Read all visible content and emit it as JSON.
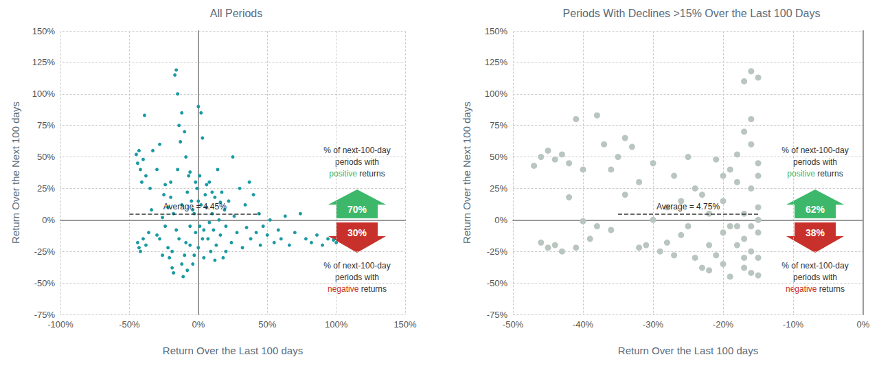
{
  "chart_data": [
    {
      "type": "scatter",
      "title": "All Periods",
      "x_label": "Return Over the Last 100 days",
      "y_label": "Return Over the Next 100 days",
      "xlim": [
        -100,
        150
      ],
      "xticks": [
        {
          "value": -100,
          "label": "-100%"
        },
        {
          "value": -50,
          "label": "-50%"
        },
        {
          "value": 0,
          "label": "0%"
        },
        {
          "value": 50,
          "label": "50%"
        },
        {
          "value": 100,
          "label": "100%"
        },
        {
          "value": 150,
          "label": "150%"
        }
      ],
      "ylim": [
        -75,
        150
      ],
      "yticks": [
        {
          "value": -75,
          "label": "-75%"
        },
        {
          "value": -50,
          "label": "-50%"
        },
        {
          "value": -25,
          "label": "-25%"
        },
        {
          "value": 0,
          "label": "0%"
        },
        {
          "value": 25,
          "label": "25%"
        },
        {
          "value": 50,
          "label": "50%"
        },
        {
          "value": 75,
          "label": "75%"
        },
        {
          "value": 100,
          "label": "100%"
        },
        {
          "value": 125,
          "label": "125%"
        },
        {
          "value": 150,
          "label": "150%"
        }
      ],
      "grid": true,
      "color": "#1a9aa3",
      "marker": "circle",
      "x": [
        -45,
        -44,
        -43,
        -42,
        -41,
        -40,
        -39,
        -38,
        -44,
        -43,
        -42,
        -40,
        -38,
        -36,
        -35,
        -33,
        -30,
        -28,
        -26,
        -25,
        -24,
        -22,
        -21,
        -20,
        -19,
        -18,
        -17,
        -16,
        -15,
        -14,
        -13,
        -12,
        -11,
        -10,
        -9,
        -8,
        -7,
        -6,
        -5,
        -4,
        -3,
        -2,
        -1,
        0,
        1,
        2,
        3,
        4,
        5,
        6,
        7,
        8,
        9,
        10,
        11,
        12,
        13,
        14,
        15,
        16,
        17,
        18,
        19,
        20,
        22,
        24,
        25,
        26,
        28,
        30,
        32,
        34,
        35,
        37,
        38,
        40,
        42,
        44,
        45,
        47,
        50,
        52,
        55,
        58,
        60,
        63,
        66,
        70,
        74,
        78,
        82,
        86,
        90,
        94,
        98,
        100,
        -28,
        -22,
        -18,
        -14,
        -12,
        -10,
        -8,
        -6,
        -4,
        -2,
        0,
        2,
        4,
        6,
        -16,
        -20,
        -24,
        -30,
        -34,
        -12,
        -6,
        0,
        3,
        8,
        -9,
        -3,
        1,
        10,
        12,
        -15,
        -19,
        -26,
        20,
        16
      ],
      "values": [
        52,
        45,
        55,
        40,
        30,
        48,
        83,
        35,
        -18,
        -22,
        -25,
        -15,
        -20,
        -10,
        25,
        55,
        40,
        60,
        -28,
        20,
        -5,
        10,
        -30,
        30,
        -38,
        -42,
        115,
        119,
        100,
        75,
        62,
        85,
        -45,
        70,
        50,
        -40,
        35,
        -20,
        15,
        -35,
        5,
        -10,
        25,
        90,
        -5,
        85,
        65,
        -30,
        20,
        10,
        -15,
        30,
        -25,
        5,
        -8,
        18,
        -20,
        40,
        0,
        -12,
        22,
        -30,
        8,
        -5,
        15,
        -18,
        50,
        3,
        -10,
        25,
        -22,
        12,
        -6,
        30,
        -15,
        20,
        -10,
        5,
        -20,
        -5,
        -12,
        0,
        -18,
        -8,
        -15,
        3,
        -20,
        -10,
        5,
        -15,
        -18,
        -12,
        -20,
        -15,
        -16,
        -18,
        -15,
        -22,
        5,
        -15,
        12,
        -28,
        22,
        -5,
        8,
        30,
        -22,
        12,
        -8,
        28,
        -8,
        18,
        28,
        -12,
        8,
        -35,
        38,
        15,
        -15,
        -2,
        -18,
        -28,
        35,
        22,
        -32,
        40,
        -25,
        2,
        -25,
        14
      ],
      "average": {
        "value": 4.45,
        "label": "Average = 4.45%",
        "x": [
          -50,
          45
        ],
        "line_style": "dashed"
      },
      "positive": {
        "caption": [
          "% of next-100-day",
          "periods with",
          "positive",
          "returns"
        ],
        "label": "70%",
        "color": "#3db86b"
      },
      "negative": {
        "caption": [
          "% of next-100-day",
          "periods with",
          "negative",
          "returns"
        ],
        "label": "30%",
        "color": "#c8312b"
      }
    },
    {
      "type": "scatter",
      "title": "Periods With Declines >15% Over the Last 100 Days",
      "x_label": "Return Over the Last 100 days",
      "y_label": "Return Over the Next 100 days",
      "xlim": [
        -50,
        0
      ],
      "xticks": [
        {
          "value": -50,
          "label": "-50%"
        },
        {
          "value": -40,
          "label": "-40%"
        },
        {
          "value": -30,
          "label": "-30%"
        },
        {
          "value": -20,
          "label": "-20%"
        },
        {
          "value": -10,
          "label": "-10%"
        },
        {
          "value": 0,
          "label": "0%"
        }
      ],
      "ylim": [
        -75,
        150
      ],
      "yticks": [
        {
          "value": -75,
          "label": "-75%"
        },
        {
          "value": -50,
          "label": "-50%"
        },
        {
          "value": -25,
          "label": "-25%"
        },
        {
          "value": 0,
          "label": "0%"
        },
        {
          "value": 25,
          "label": "25%"
        },
        {
          "value": 50,
          "label": "50%"
        },
        {
          "value": 75,
          "label": "75%"
        },
        {
          "value": 100,
          "label": "100%"
        },
        {
          "value": 125,
          "label": "125%"
        },
        {
          "value": 150,
          "label": "150%"
        }
      ],
      "grid": true,
      "color": "#b9c6bf",
      "marker": "circle",
      "x": [
        -47,
        -46,
        -45,
        -44,
        -43,
        -42,
        -41,
        -40,
        -38,
        -37,
        -46,
        -45,
        -44,
        -43,
        -41,
        -39,
        -36,
        -35,
        -34,
        -33,
        -32,
        -31,
        -30,
        -29,
        -28,
        -27,
        -26,
        -25,
        -24,
        -23,
        -22,
        -21,
        -20,
        -20,
        -19,
        -19,
        -18,
        -18,
        -17,
        -17,
        -16,
        -16,
        -16,
        -16,
        -15,
        -15,
        -15,
        -15,
        -15,
        -15,
        -17,
        -17,
        -18,
        -16,
        -15,
        -16,
        -17,
        -20,
        -22,
        -24,
        -26,
        -28,
        -30,
        -32,
        -34,
        -36,
        -38,
        -40,
        -42,
        -23,
        -21,
        -19,
        -18,
        -17,
        -16,
        -15,
        -20,
        -22,
        -25,
        -27
      ],
      "values": [
        43,
        50,
        55,
        48,
        52,
        45,
        80,
        40,
        83,
        60,
        -18,
        -22,
        -20,
        -25,
        -22,
        -15,
        -8,
        50,
        65,
        58,
        30,
        -20,
        45,
        -25,
        10,
        35,
        -12,
        50,
        -30,
        20,
        -40,
        48,
        -35,
        15,
        -45,
        40,
        -20,
        30,
        110,
        -38,
        118,
        80,
        -42,
        25,
        113,
        45,
        -10,
        10,
        -30,
        35,
        5,
        -15,
        -5,
        -25,
        -44,
        60,
        70,
        -10,
        5,
        25,
        15,
        -18,
        0,
        -22,
        20,
        40,
        -5,
        -1,
        18,
        -38,
        -28,
        -5,
        52,
        -30,
        -5,
        0,
        35,
        -20,
        -5,
        -28
      ],
      "average": {
        "value": 4.75,
        "label": "Average = 4.75%",
        "x": [
          -35,
          -15
        ],
        "line_style": "dashed"
      },
      "positive": {
        "caption": [
          "% of next-100-day",
          "periods with",
          "positive",
          "returns"
        ],
        "label": "62%",
        "color": "#3db86b"
      },
      "negative": {
        "caption": [
          "% of next-100-day",
          "periods with",
          "negative",
          "returns"
        ],
        "label": "38%",
        "color": "#c8312b"
      }
    }
  ]
}
